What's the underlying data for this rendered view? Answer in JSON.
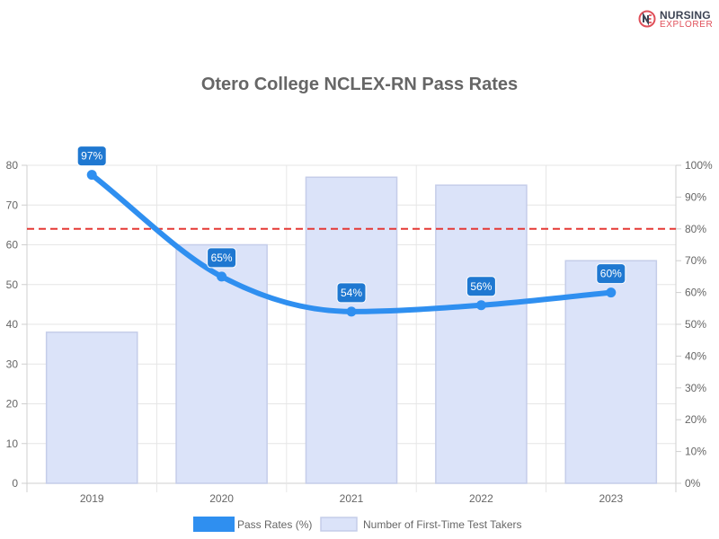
{
  "brand": {
    "line1": "NURSING",
    "line2": "EXPLORER"
  },
  "chart_data": {
    "type": "bar",
    "title": "Otero College NCLEX-RN Pass Rates",
    "categories": [
      "2019",
      "2020",
      "2021",
      "2022",
      "2023"
    ],
    "series": [
      {
        "name": "Pass Rates (%)",
        "type": "line",
        "axis": "right",
        "values": [
          97,
          65,
          54,
          56,
          60
        ],
        "value_labels": [
          "97%",
          "65%",
          "54%",
          "56%",
          "60%"
        ],
        "color": "#2f8ff0"
      },
      {
        "name": "Number of First-Time Test Takers",
        "type": "bar",
        "axis": "left",
        "values": [
          38,
          60,
          77,
          75,
          56
        ],
        "color": "#dbe3f9",
        "border_color": "#c5cde9"
      }
    ],
    "left_axis": {
      "min": 0,
      "max": 80,
      "ticks": [
        "0",
        "10",
        "20",
        "30",
        "40",
        "50",
        "60",
        "70",
        "80"
      ]
    },
    "right_axis": {
      "min": 0,
      "max": 100,
      "ticks": [
        "0%",
        "10%",
        "20%",
        "30%",
        "40%",
        "50%",
        "60%",
        "70%",
        "80%",
        "90%",
        "100%"
      ]
    },
    "reference_line": {
      "value": 80,
      "axis": "right",
      "color": "#e53935",
      "style": "dashed"
    },
    "grid": true,
    "legend_position": "bottom",
    "label_color": "#1f78d1"
  }
}
